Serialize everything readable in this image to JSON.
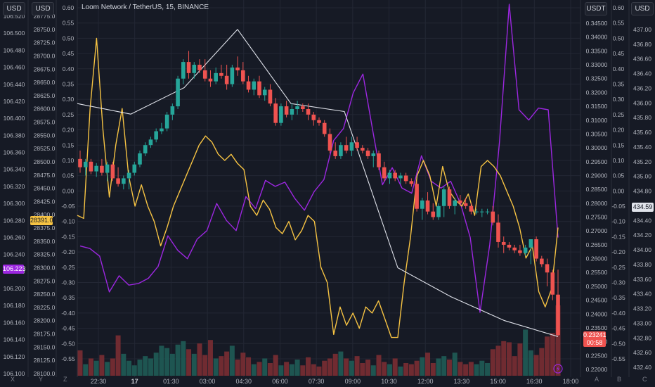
{
  "header": {
    "title": "Loom Network / TetherUS, 15, BINANCE",
    "scale_labels": {
      "dxy": "USD",
      "btc": "USD",
      "loom": "USDT",
      "spx": "USD"
    }
  },
  "price_tags": {
    "btc_last": "28391.0",
    "dxy_last": "106.223",
    "loom_last": "0.23241",
    "loom_countdown": "00:58",
    "spx_last": "434.59"
  },
  "corner_labels": [
    "X",
    "Y",
    "Z",
    "A",
    "B",
    "C"
  ],
  "colors": {
    "background": "#161a25",
    "candle_up": "#26a69a",
    "candle_down": "#ef5350",
    "orange_line": "#f6c343",
    "purple_line": "#9c27e0",
    "white_line": "#e0e3eb",
    "dxy_tag": "#9c27e0",
    "btc_tag": "#f6c343"
  },
  "chart_data": {
    "type": "candlestick",
    "title": "Loom Network / TetherUS, 15, BINANCE",
    "x_ticks": [
      "22:30",
      "17",
      "01:30",
      "03:00",
      "04:30",
      "06:00",
      "07:30",
      "09:00",
      "10:30",
      "12:00",
      "13:30",
      "15:00",
      "16:30",
      "18:00"
    ],
    "axes": {
      "dxy": {
        "unit": "USD",
        "ticks": [
          "106.520",
          "106.500",
          "106.480",
          "106.460",
          "106.440",
          "106.420",
          "106.400",
          "106.380",
          "106.360",
          "106.340",
          "106.320",
          "106.300",
          "106.280",
          "106.260",
          "106.240",
          "106.220",
          "106.200",
          "106.180",
          "106.160",
          "106.140",
          "106.120",
          "106.100"
        ]
      },
      "btc": {
        "unit": "USD",
        "ticks": [
          "28775.0",
          "28750.0",
          "28725.0",
          "28700.0",
          "28675.0",
          "28650.0",
          "28625.0",
          "28600.0",
          "28575.0",
          "28550.0",
          "28525.0",
          "28500.0",
          "28475.0",
          "28450.0",
          "28425.0",
          "28400.0",
          "28375.0",
          "28350.0",
          "28325.0",
          "28300.0",
          "28275.0",
          "28250.0",
          "28225.0",
          "28200.0",
          "28175.0",
          "28150.0",
          "28125.0",
          "28100.0"
        ]
      },
      "pct": {
        "ticks": [
          "0.60",
          "0.55",
          "0.50",
          "0.45",
          "0.40",
          "0.35",
          "0.30",
          "0.25",
          "0.20",
          "0.15",
          "0.10",
          "0.05",
          "0.00",
          "-0.05",
          "-0.10",
          "-0.15",
          "-0.20",
          "-0.25",
          "-0.30",
          "-0.35",
          "-0.40",
          "-0.45",
          "-0.50",
          "-0.55"
        ]
      },
      "loom": {
        "unit": "USDT",
        "ticks": [
          "0.34500",
          "0.34000",
          "0.33500",
          "0.33000",
          "0.32500",
          "0.32000",
          "0.31500",
          "0.31000",
          "0.30500",
          "0.30000",
          "0.29500",
          "0.29000",
          "0.28500",
          "0.28000",
          "0.27500",
          "0.27000",
          "0.26500",
          "0.26000",
          "0.25500",
          "0.25000",
          "0.24500",
          "0.24000",
          "0.23500",
          "0.23000",
          "0.22500",
          "0.22000"
        ]
      },
      "pct_right": {
        "ticks": [
          "0.60",
          "0.55",
          "0.50",
          "0.45",
          "0.40",
          "0.35",
          "0.30",
          "0.25",
          "0.20",
          "0.15",
          "0.10",
          "0.05",
          "0.00",
          "-0.05",
          "-0.10",
          "-0.15",
          "-0.20",
          "-0.25",
          "-0.30",
          "-0.35",
          "-0.40",
          "-0.45",
          "-0.50",
          "-0.55"
        ]
      },
      "spx": {
        "unit": "USD",
        "ticks": [
          "437.00",
          "436.80",
          "436.60",
          "436.40",
          "436.20",
          "436.00",
          "435.80",
          "435.60",
          "435.40",
          "435.20",
          "435.00",
          "434.80",
          "434.60",
          "434.40",
          "434.20",
          "434.00",
          "433.80",
          "433.60",
          "433.40",
          "433.20",
          "433.00",
          "432.80",
          "432.60",
          "432.40"
        ]
      }
    },
    "candles": [
      {
        "o": 0.296,
        "h": 0.299,
        "l": 0.291,
        "c": 0.293,
        "v": 44
      },
      {
        "o": 0.293,
        "h": 0.296,
        "l": 0.29,
        "c": 0.295,
        "v": 20
      },
      {
        "o": 0.295,
        "h": 0.296,
        "l": 0.2905,
        "c": 0.2915,
        "v": 30
      },
      {
        "o": 0.2915,
        "h": 0.2945,
        "l": 0.2895,
        "c": 0.2935,
        "v": 26
      },
      {
        "o": 0.2935,
        "h": 0.296,
        "l": 0.29,
        "c": 0.291,
        "v": 36
      },
      {
        "o": 0.291,
        "h": 0.295,
        "l": 0.288,
        "c": 0.294,
        "v": 24
      },
      {
        "o": 0.294,
        "h": 0.295,
        "l": 0.288,
        "c": 0.289,
        "v": 30
      },
      {
        "o": 0.289,
        "h": 0.293,
        "l": 0.286,
        "c": 0.287,
        "v": 70
      },
      {
        "o": 0.287,
        "h": 0.29,
        "l": 0.285,
        "c": 0.289,
        "v": 38
      },
      {
        "o": 0.289,
        "h": 0.292,
        "l": 0.285,
        "c": 0.291,
        "v": 26
      },
      {
        "o": 0.291,
        "h": 0.295,
        "l": 0.29,
        "c": 0.294,
        "v": 18
      },
      {
        "o": 0.294,
        "h": 0.299,
        "l": 0.293,
        "c": 0.298,
        "v": 28
      },
      {
        "o": 0.298,
        "h": 0.302,
        "l": 0.297,
        "c": 0.301,
        "v": 34
      },
      {
        "o": 0.301,
        "h": 0.304,
        "l": 0.3,
        "c": 0.303,
        "v": 30
      },
      {
        "o": 0.303,
        "h": 0.307,
        "l": 0.302,
        "c": 0.306,
        "v": 40
      },
      {
        "o": 0.306,
        "h": 0.309,
        "l": 0.305,
        "c": 0.307,
        "v": 52
      },
      {
        "o": 0.307,
        "h": 0.313,
        "l": 0.306,
        "c": 0.312,
        "v": 48
      },
      {
        "o": 0.312,
        "h": 0.316,
        "l": 0.31,
        "c": 0.315,
        "v": 38
      },
      {
        "o": 0.315,
        "h": 0.326,
        "l": 0.314,
        "c": 0.325,
        "v": 54
      },
      {
        "o": 0.325,
        "h": 0.332,
        "l": 0.323,
        "c": 0.331,
        "v": 60
      },
      {
        "o": 0.331,
        "h": 0.335,
        "l": 0.325,
        "c": 0.327,
        "v": 46
      },
      {
        "o": 0.327,
        "h": 0.331,
        "l": 0.325,
        "c": 0.33,
        "v": 38
      },
      {
        "o": 0.33,
        "h": 0.332,
        "l": 0.327,
        "c": 0.328,
        "v": 56
      },
      {
        "o": 0.328,
        "h": 0.332,
        "l": 0.324,
        "c": 0.325,
        "v": 36
      },
      {
        "o": 0.325,
        "h": 0.328,
        "l": 0.322,
        "c": 0.324,
        "v": 62
      },
      {
        "o": 0.324,
        "h": 0.329,
        "l": 0.323,
        "c": 0.327,
        "v": 30
      },
      {
        "o": 0.327,
        "h": 0.33,
        "l": 0.325,
        "c": 0.326,
        "v": 34
      },
      {
        "o": 0.326,
        "h": 0.33,
        "l": 0.321,
        "c": 0.323,
        "v": 42
      },
      {
        "o": 0.323,
        "h": 0.33,
        "l": 0.322,
        "c": 0.329,
        "v": 52
      },
      {
        "o": 0.329,
        "h": 0.333,
        "l": 0.326,
        "c": 0.328,
        "v": 28
      },
      {
        "o": 0.328,
        "h": 0.331,
        "l": 0.323,
        "c": 0.324,
        "v": 40
      },
      {
        "o": 0.324,
        "h": 0.326,
        "l": 0.32,
        "c": 0.321,
        "v": 32
      },
      {
        "o": 0.321,
        "h": 0.325,
        "l": 0.319,
        "c": 0.324,
        "v": 20
      },
      {
        "o": 0.324,
        "h": 0.326,
        "l": 0.318,
        "c": 0.319,
        "v": 24
      },
      {
        "o": 0.319,
        "h": 0.322,
        "l": 0.317,
        "c": 0.321,
        "v": 30
      },
      {
        "o": 0.321,
        "h": 0.323,
        "l": 0.315,
        "c": 0.316,
        "v": 22
      },
      {
        "o": 0.316,
        "h": 0.318,
        "l": 0.308,
        "c": 0.309,
        "v": 36
      },
      {
        "o": 0.309,
        "h": 0.316,
        "l": 0.308,
        "c": 0.315,
        "v": 18
      },
      {
        "o": 0.315,
        "h": 0.317,
        "l": 0.311,
        "c": 0.312,
        "v": 24
      },
      {
        "o": 0.312,
        "h": 0.316,
        "l": 0.31,
        "c": 0.314,
        "v": 20
      },
      {
        "o": 0.314,
        "h": 0.317,
        "l": 0.312,
        "c": 0.315,
        "v": 28
      },
      {
        "o": 0.315,
        "h": 0.316,
        "l": 0.313,
        "c": 0.314,
        "v": 18
      },
      {
        "o": 0.314,
        "h": 0.316,
        "l": 0.31,
        "c": 0.312,
        "v": 32
      },
      {
        "o": 0.312,
        "h": 0.313,
        "l": 0.308,
        "c": 0.31,
        "v": 20
      },
      {
        "o": 0.31,
        "h": 0.311,
        "l": 0.308,
        "c": 0.309,
        "v": 16
      },
      {
        "o": 0.309,
        "h": 0.31,
        "l": 0.304,
        "c": 0.305,
        "v": 26
      },
      {
        "o": 0.305,
        "h": 0.307,
        "l": 0.298,
        "c": 0.299,
        "v": 30
      },
      {
        "o": 0.299,
        "h": 0.302,
        "l": 0.296,
        "c": 0.297,
        "v": 38
      },
      {
        "o": 0.297,
        "h": 0.302,
        "l": 0.296,
        "c": 0.301,
        "v": 42
      },
      {
        "o": 0.301,
        "h": 0.304,
        "l": 0.298,
        "c": 0.299,
        "v": 30
      },
      {
        "o": 0.299,
        "h": 0.304,
        "l": 0.297,
        "c": 0.302,
        "v": 26
      },
      {
        "o": 0.302,
        "h": 0.304,
        "l": 0.299,
        "c": 0.3,
        "v": 34
      },
      {
        "o": 0.3,
        "h": 0.301,
        "l": 0.298,
        "c": 0.299,
        "v": 22
      },
      {
        "o": 0.299,
        "h": 0.3,
        "l": 0.296,
        "c": 0.297,
        "v": 28
      },
      {
        "o": 0.297,
        "h": 0.299,
        "l": 0.293,
        "c": 0.298,
        "v": 18
      },
      {
        "o": 0.298,
        "h": 0.299,
        "l": 0.292,
        "c": 0.293,
        "v": 36
      },
      {
        "o": 0.293,
        "h": 0.295,
        "l": 0.288,
        "c": 0.289,
        "v": 24
      },
      {
        "o": 0.289,
        "h": 0.292,
        "l": 0.287,
        "c": 0.291,
        "v": 20
      },
      {
        "o": 0.291,
        "h": 0.292,
        "l": 0.288,
        "c": 0.289,
        "v": 30
      },
      {
        "o": 0.289,
        "h": 0.291,
        "l": 0.287,
        "c": 0.29,
        "v": 16
      },
      {
        "o": 0.29,
        "h": 0.291,
        "l": 0.287,
        "c": 0.288,
        "v": 22
      },
      {
        "o": 0.288,
        "h": 0.289,
        "l": 0.286,
        "c": 0.287,
        "v": 20
      },
      {
        "o": 0.287,
        "h": 0.288,
        "l": 0.277,
        "c": 0.278,
        "v": 26
      },
      {
        "o": 0.278,
        "h": 0.282,
        "l": 0.274,
        "c": 0.281,
        "v": 32
      },
      {
        "o": 0.281,
        "h": 0.284,
        "l": 0.276,
        "c": 0.277,
        "v": 40
      },
      {
        "o": 0.277,
        "h": 0.28,
        "l": 0.274,
        "c": 0.275,
        "v": 22
      },
      {
        "o": 0.275,
        "h": 0.28,
        "l": 0.274,
        "c": 0.279,
        "v": 30
      },
      {
        "o": 0.279,
        "h": 0.286,
        "l": 0.275,
        "c": 0.285,
        "v": 34
      },
      {
        "o": 0.285,
        "h": 0.286,
        "l": 0.278,
        "c": 0.279,
        "v": 28
      },
      {
        "o": 0.279,
        "h": 0.282,
        "l": 0.276,
        "c": 0.281,
        "v": 40
      },
      {
        "o": 0.281,
        "h": 0.283,
        "l": 0.279,
        "c": 0.28,
        "v": 24
      },
      {
        "o": 0.28,
        "h": 0.282,
        "l": 0.278,
        "c": 0.279,
        "v": 20
      },
      {
        "o": 0.279,
        "h": 0.28,
        "l": 0.276,
        "c": 0.277,
        "v": 24
      },
      {
        "o": 0.277,
        "h": 0.278,
        "l": 0.276,
        "c": 0.277,
        "v": 20
      },
      {
        "o": 0.277,
        "h": 0.278,
        "l": 0.275,
        "c": 0.277,
        "v": 26
      },
      {
        "o": 0.277,
        "h": 0.278,
        "l": 0.276,
        "c": 0.277,
        "v": 22
      },
      {
        "o": 0.277,
        "h": 0.279,
        "l": 0.272,
        "c": 0.273,
        "v": 46
      },
      {
        "o": 0.273,
        "h": 0.276,
        "l": 0.264,
        "c": 0.266,
        "v": 52
      },
      {
        "o": 0.266,
        "h": 0.268,
        "l": 0.262,
        "c": 0.265,
        "v": 60
      },
      {
        "o": 0.265,
        "h": 0.266,
        "l": 0.263,
        "c": 0.264,
        "v": 58
      },
      {
        "o": 0.264,
        "h": 0.265,
        "l": 0.262,
        "c": 0.263,
        "v": 34
      },
      {
        "o": 0.263,
        "h": 0.265,
        "l": 0.261,
        "c": 0.262,
        "v": 56
      },
      {
        "o": 0.262,
        "h": 0.265,
        "l": 0.261,
        "c": 0.264,
        "v": 80
      },
      {
        "o": 0.264,
        "h": 0.267,
        "l": 0.258,
        "c": 0.267,
        "v": 44
      },
      {
        "o": 0.267,
        "h": 0.268,
        "l": 0.259,
        "c": 0.26,
        "v": 36
      },
      {
        "o": 0.26,
        "h": 0.261,
        "l": 0.257,
        "c": 0.258,
        "v": 48
      },
      {
        "o": 0.258,
        "h": 0.26,
        "l": 0.25,
        "c": 0.255,
        "v": 68
      },
      {
        "o": 0.255,
        "h": 0.256,
        "l": 0.245,
        "c": 0.247,
        "v": 74
      },
      {
        "o": 0.247,
        "h": 0.256,
        "l": 0.232,
        "c": 0.2324,
        "v": 122
      }
    ],
    "orange_pct_line": [
      -0.08,
      -0.09,
      0.27,
      0.5,
      0.2,
      -0.02,
      0.15,
      0.27,
      0.05,
      -0.05,
      0.02,
      -0.05,
      -0.1,
      -0.18,
      -0.12,
      -0.05,
      0.0,
      0.05,
      0.1,
      0.15,
      0.18,
      0.16,
      0.12,
      0.1,
      0.12,
      0.09,
      0.07,
      -0.05,
      -0.08,
      -0.03,
      -0.06,
      -0.12,
      -0.14,
      -0.1,
      -0.16,
      -0.13,
      -0.08,
      -0.1,
      -0.25,
      -0.3,
      -0.47,
      -0.38,
      -0.44,
      -0.4,
      -0.45,
      -0.38,
      -0.4,
      -0.36,
      -0.42,
      -0.48,
      -0.48,
      -0.3,
      -0.15,
      0.05,
      0.1,
      0.05,
      -0.05,
      0.08,
      0.0,
      -0.03,
      -0.05,
      -0.01,
      -0.08,
      0.08,
      0.1,
      0.08,
      0.05,
      0.0,
      -0.05,
      -0.12,
      -0.22,
      -0.18,
      -0.33,
      -0.38,
      -0.32,
      -0.12
    ],
    "purple_dxy": [
      106.25,
      106.247,
      106.238,
      106.196,
      106.215,
      106.204,
      106.206,
      106.212,
      106.226,
      106.262,
      106.245,
      106.235,
      106.258,
      106.268,
      106.3,
      106.28,
      106.268,
      106.308,
      106.294,
      106.327,
      106.32,
      106.325,
      106.306,
      106.292,
      106.314,
      106.328,
      106.374,
      106.388,
      106.43,
      106.452,
      106.386,
      106.322,
      106.342,
      106.318,
      106.312,
      106.356,
      106.326,
      106.318,
      106.326,
      106.3,
      106.26,
      106.172,
      106.252,
      106.372,
      106.534,
      106.41,
      106.398,
      106.412,
      106.41,
      106.26
    ],
    "white_btc": [
      28610,
      28590,
      28640,
      28750,
      28610,
      28595,
      28300,
      28245,
      28200,
      28170
    ]
  }
}
